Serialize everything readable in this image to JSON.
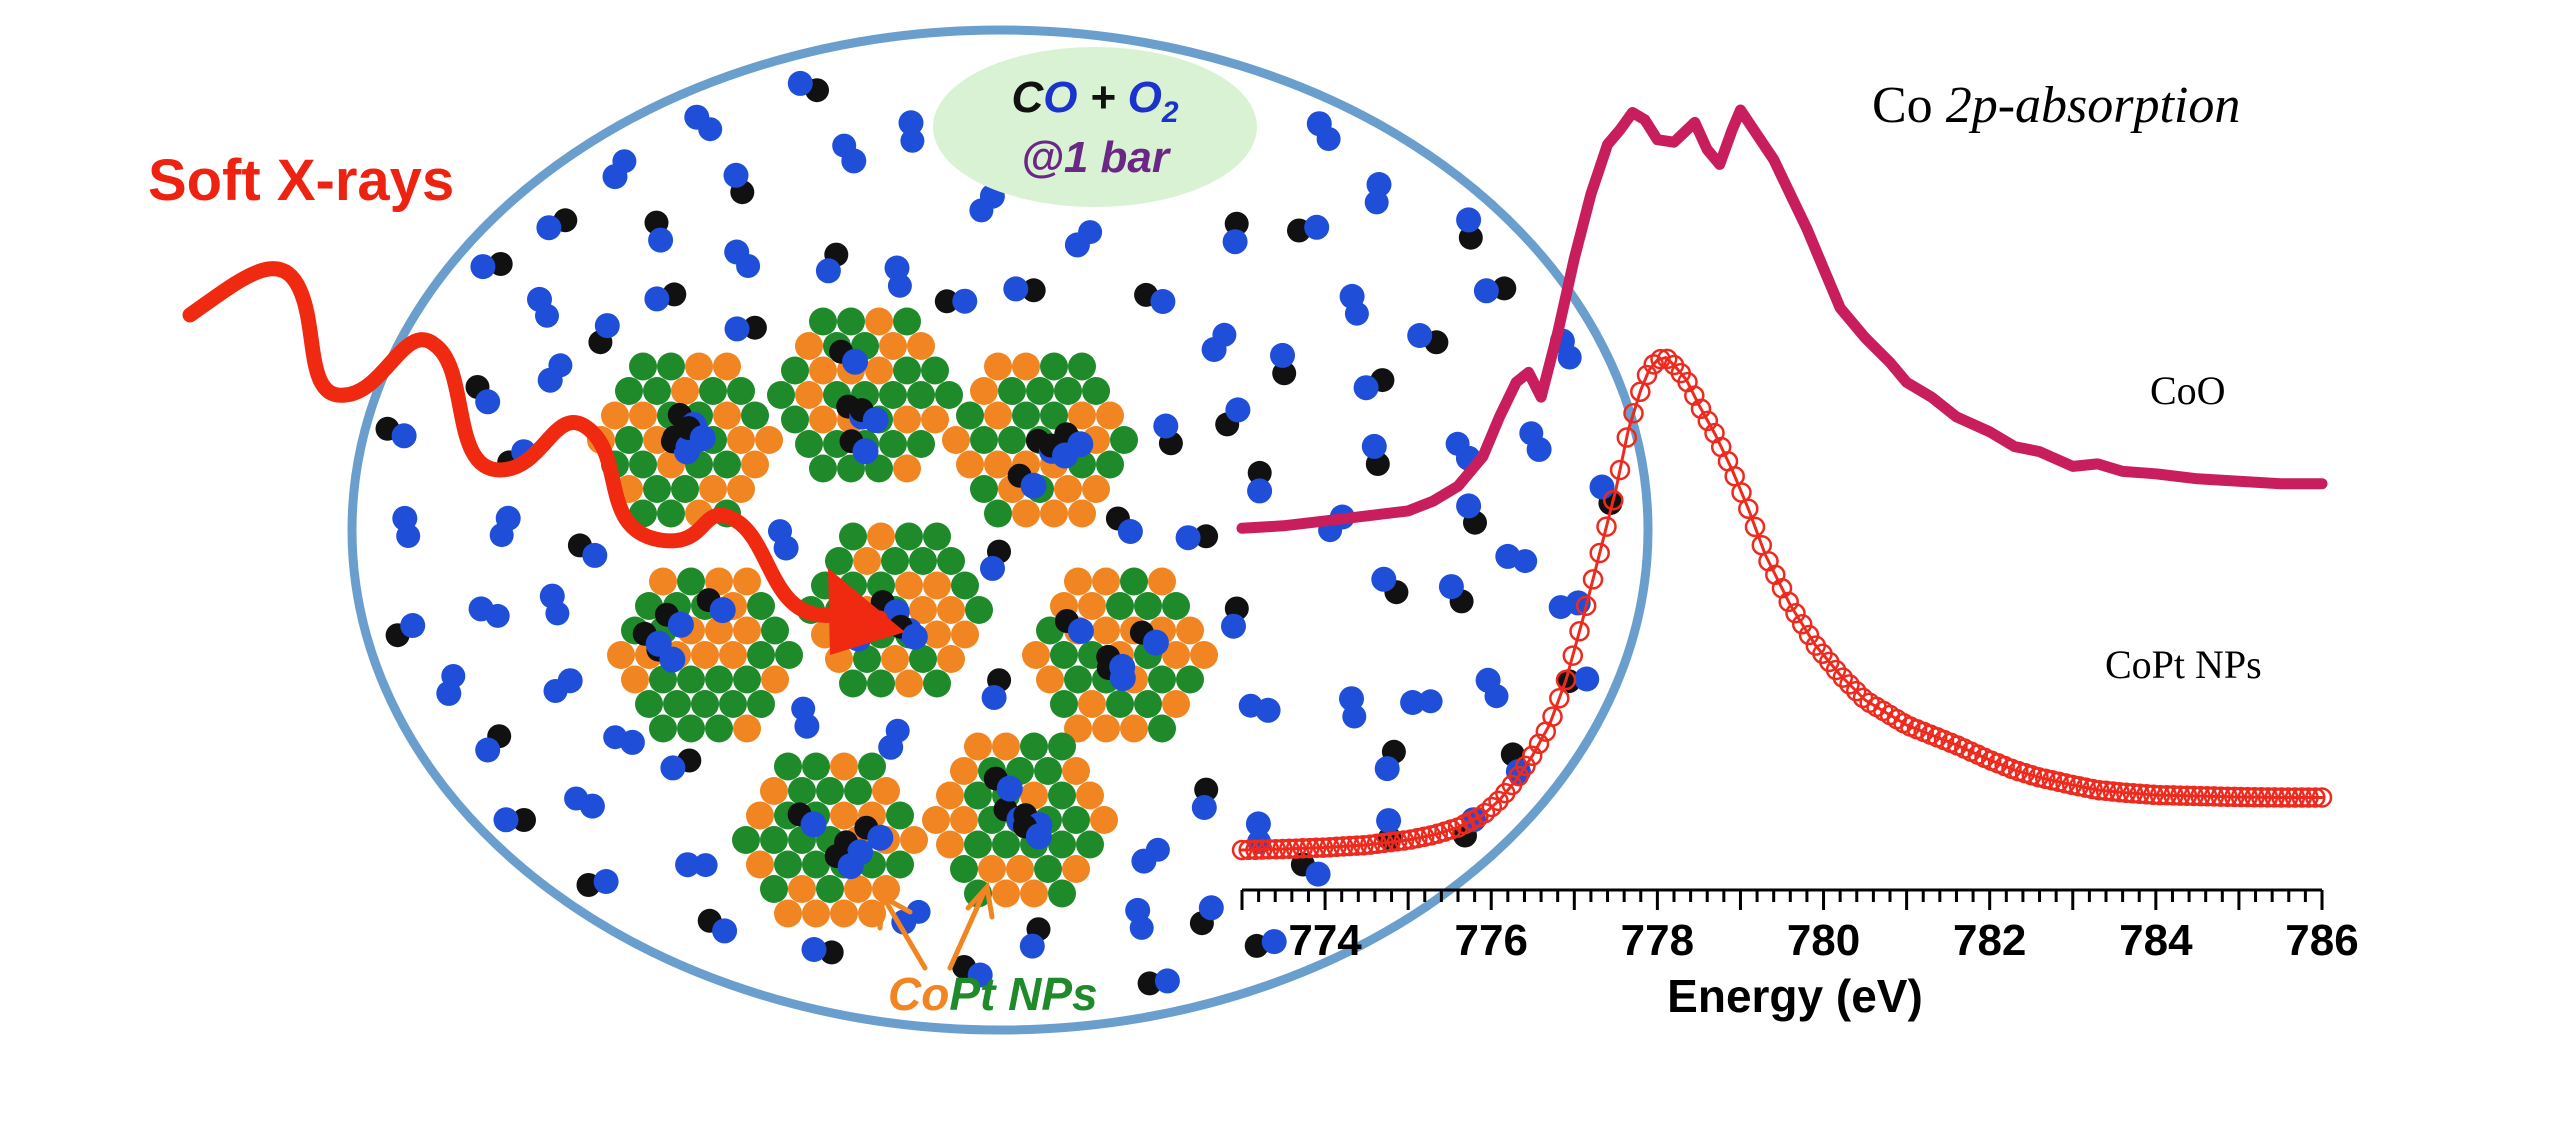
{
  "labels": {
    "soft_xrays": "Soft X-rays",
    "gas_c": "C",
    "gas_o": "O",
    "gas_plus": " + ",
    "gas_o2_o": "O",
    "gas_o2_sub": "2",
    "gas_pressure": "@1 bar",
    "np_co": "Co",
    "np_pt_nps": "Pt NPs",
    "spectrum_title_co": "Co ",
    "spectrum_title_italic": "2p-absorption",
    "curve_coo": "CoO",
    "curve_copt": "CoPt NPs"
  },
  "colors": {
    "xray": "#f02a10",
    "xray_text": "#ee2211",
    "ellipse": "#6a9fcd",
    "co_oxygen": "#1f4ed8",
    "co_carbon": "#111111",
    "cobalt_atom": "#f08522",
    "platinum_atom": "#1e8a2a",
    "bubble_fill": "#d9f2d4",
    "bubble_text_dark": "#111111",
    "bubble_text_blue": "#1a33cc",
    "bubble_text_purple": "#6b2785",
    "coo_curve": "#c81e5e",
    "copt_curve": "#ee2a1e"
  },
  "chart_data": {
    "type": "line",
    "title": "Co 2p-absorption",
    "xlabel": "Energy (eV)",
    "ylabel": "",
    "xlim": [
      773,
      786
    ],
    "x_ticks": [
      774,
      776,
      778,
      780,
      782,
      784,
      786
    ],
    "series": [
      {
        "name": "CoO",
        "style": "line",
        "x": [
          773.0,
          773.5,
          774.0,
          774.5,
          775.0,
          775.3,
          775.6,
          775.9,
          776.1,
          776.3,
          776.45,
          776.6,
          776.8,
          777.0,
          777.2,
          777.4,
          777.55,
          777.7,
          777.85,
          778.0,
          778.2,
          778.45,
          778.6,
          778.75,
          778.9,
          779.0,
          779.2,
          779.4,
          779.6,
          779.8,
          780.0,
          780.2,
          780.5,
          780.8,
          781.0,
          781.3,
          781.6,
          782.0,
          782.3,
          782.6,
          783.0,
          783.3,
          783.6,
          784.0,
          784.5,
          785.0,
          785.5,
          786.0
        ],
        "y": [
          0.155,
          0.16,
          0.17,
          0.18,
          0.19,
          0.21,
          0.24,
          0.3,
          0.38,
          0.45,
          0.47,
          0.42,
          0.55,
          0.7,
          0.83,
          0.93,
          0.96,
          0.995,
          0.98,
          0.94,
          0.935,
          0.975,
          0.92,
          0.89,
          0.96,
          1.0,
          0.95,
          0.9,
          0.83,
          0.76,
          0.68,
          0.6,
          0.54,
          0.49,
          0.45,
          0.42,
          0.38,
          0.35,
          0.32,
          0.31,
          0.28,
          0.285,
          0.27,
          0.265,
          0.255,
          0.25,
          0.245,
          0.245
        ]
      },
      {
        "name": "CoPt NPs",
        "style": "line-with-open-circles",
        "x": [
          773.0,
          773.5,
          774.0,
          774.5,
          775.0,
          775.3,
          775.6,
          775.9,
          776.1,
          776.3,
          776.5,
          776.7,
          776.9,
          777.1,
          777.3,
          777.5,
          777.65,
          777.8,
          777.9,
          778.0,
          778.1,
          778.2,
          778.35,
          778.5,
          778.7,
          778.9,
          779.1,
          779.3,
          779.6,
          779.9,
          780.2,
          780.5,
          780.8,
          781.0,
          781.3,
          781.6,
          782.0,
          782.3,
          782.6,
          783.0,
          783.3,
          783.6,
          784.0,
          784.5,
          785.0,
          785.5,
          786.0
        ],
        "y": [
          0.01,
          0.012,
          0.015,
          0.02,
          0.03,
          0.04,
          0.055,
          0.08,
          0.11,
          0.15,
          0.2,
          0.26,
          0.35,
          0.47,
          0.6,
          0.73,
          0.85,
          0.93,
          0.97,
          0.99,
          0.995,
          0.98,
          0.95,
          0.9,
          0.84,
          0.77,
          0.69,
          0.6,
          0.5,
          0.42,
          0.36,
          0.31,
          0.28,
          0.26,
          0.24,
          0.22,
          0.19,
          0.17,
          0.155,
          0.14,
          0.13,
          0.125,
          0.12,
          0.118,
          0.116,
          0.115,
          0.115
        ]
      }
    ]
  }
}
